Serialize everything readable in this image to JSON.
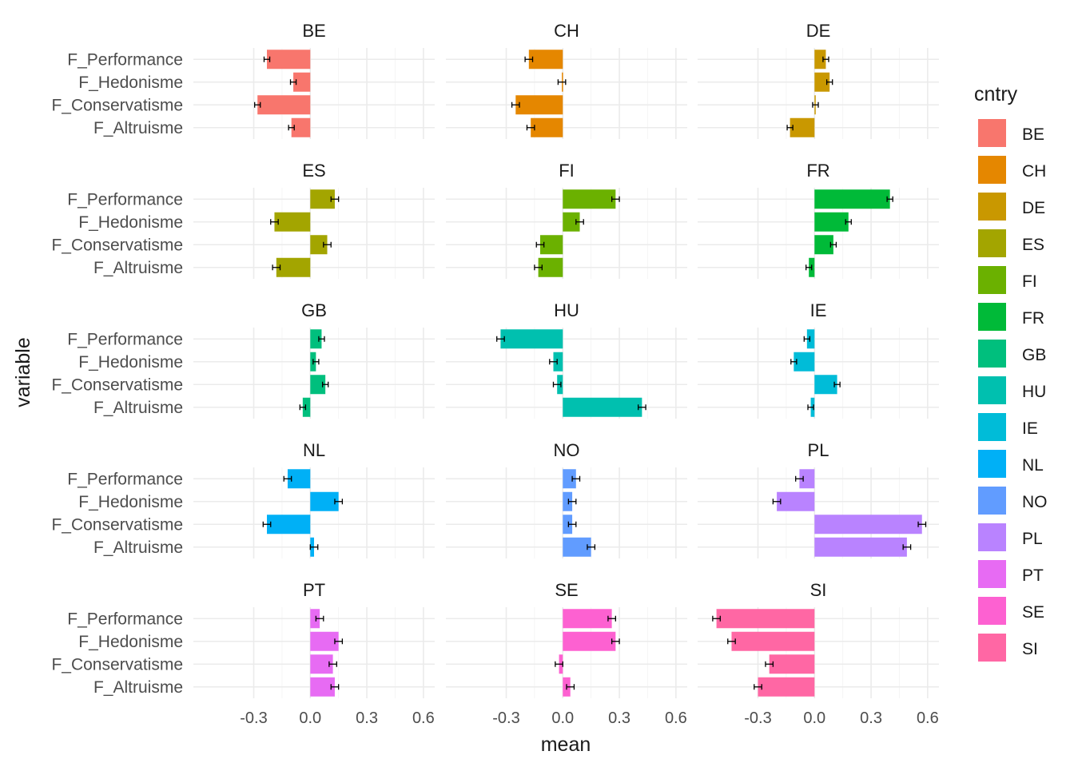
{
  "chart_data": {
    "type": "bar",
    "orientation": "horizontal",
    "facet_layout": {
      "rows": 5,
      "cols": 3
    },
    "xlabel": "mean",
    "ylabel": "variable",
    "x_ticks": [
      -0.3,
      0.0,
      0.3,
      0.6
    ],
    "x_tick_labels": [
      "-0.3",
      "0.0",
      "0.3",
      "0.6"
    ],
    "xlim": [
      -0.62,
      0.66
    ],
    "variables": [
      "F_Performance",
      "F_Hedonisme",
      "F_Conservatisme",
      "F_Altruisme"
    ],
    "grid": true,
    "legend": {
      "title": "cntry",
      "position": "right",
      "entries": [
        "BE",
        "CH",
        "DE",
        "ES",
        "FI",
        "FR",
        "GB",
        "HU",
        "IE",
        "NL",
        "NO",
        "PL",
        "PT",
        "SE",
        "SI"
      ]
    },
    "colors": {
      "BE": "#F8766D",
      "CH": "#E58700",
      "DE": "#C99800",
      "ES": "#A3A500",
      "FI": "#6BB100",
      "FR": "#00BA38",
      "GB": "#00BF7D",
      "HU": "#00C0AF",
      "IE": "#00BCD8",
      "NL": "#00B0F6",
      "NO": "#619CFF",
      "PL": "#B983FF",
      "PT": "#E76BF3",
      "SE": "#FD61D1",
      "SI": "#FF67A4"
    },
    "panels": [
      {
        "country": "BE",
        "values": [
          -0.23,
          -0.09,
          -0.28,
          -0.1
        ],
        "errors": [
          0.015,
          0.015,
          0.015,
          0.015
        ]
      },
      {
        "country": "CH",
        "values": [
          -0.18,
          -0.005,
          -0.25,
          -0.17
        ],
        "errors": [
          0.02,
          0.02,
          0.02,
          0.02
        ]
      },
      {
        "country": "DE",
        "values": [
          0.06,
          0.08,
          0.005,
          -0.13
        ],
        "errors": [
          0.015,
          0.015,
          0.015,
          0.015
        ]
      },
      {
        "country": "ES",
        "values": [
          0.13,
          -0.19,
          0.09,
          -0.18
        ],
        "errors": [
          0.02,
          0.02,
          0.02,
          0.02
        ]
      },
      {
        "country": "FI",
        "values": [
          0.28,
          0.09,
          -0.12,
          -0.13
        ],
        "errors": [
          0.02,
          0.02,
          0.02,
          0.02
        ]
      },
      {
        "country": "FR",
        "values": [
          0.4,
          0.18,
          0.1,
          -0.03
        ],
        "errors": [
          0.015,
          0.015,
          0.015,
          0.015
        ]
      },
      {
        "country": "GB",
        "values": [
          0.06,
          0.03,
          0.08,
          -0.04
        ],
        "errors": [
          0.015,
          0.015,
          0.015,
          0.015
        ]
      },
      {
        "country": "HU",
        "values": [
          -0.33,
          -0.05,
          -0.03,
          0.42
        ],
        "errors": [
          0.02,
          0.02,
          0.02,
          0.02
        ]
      },
      {
        "country": "IE",
        "values": [
          -0.04,
          -0.11,
          0.12,
          -0.02
        ],
        "errors": [
          0.015,
          0.015,
          0.015,
          0.015
        ]
      },
      {
        "country": "NL",
        "values": [
          -0.12,
          0.15,
          -0.23,
          0.02
        ],
        "errors": [
          0.02,
          0.02,
          0.02,
          0.02
        ]
      },
      {
        "country": "NO",
        "values": [
          0.07,
          0.05,
          0.05,
          0.15
        ],
        "errors": [
          0.02,
          0.02,
          0.02,
          0.02
        ]
      },
      {
        "country": "PL",
        "values": [
          -0.08,
          -0.2,
          0.57,
          0.49
        ],
        "errors": [
          0.02,
          0.02,
          0.02,
          0.02
        ]
      },
      {
        "country": "PT",
        "values": [
          0.05,
          0.15,
          0.12,
          0.13
        ],
        "errors": [
          0.02,
          0.02,
          0.02,
          0.02
        ]
      },
      {
        "country": "SE",
        "values": [
          0.26,
          0.28,
          -0.02,
          0.04
        ],
        "errors": [
          0.02,
          0.02,
          0.02,
          0.02
        ]
      },
      {
        "country": "SI",
        "values": [
          -0.52,
          -0.44,
          -0.24,
          -0.3
        ],
        "errors": [
          0.02,
          0.02,
          0.02,
          0.02
        ]
      }
    ]
  }
}
